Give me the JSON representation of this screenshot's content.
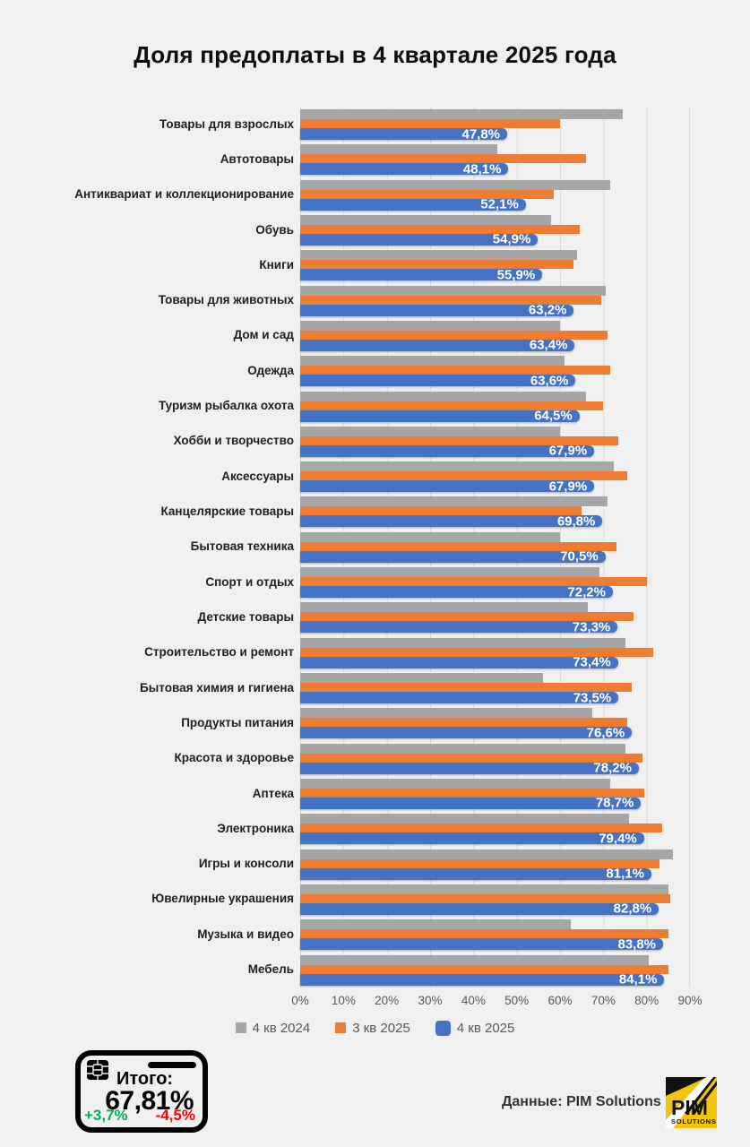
{
  "title": "Доля предоплаты в 4 квартале 2025 года",
  "chart_data": {
    "type": "bar",
    "orientation": "horizontal",
    "xlim": [
      0,
      90
    ],
    "x_ticks": [
      "0%",
      "10%",
      "20%",
      "30%",
      "40%",
      "50%",
      "60%",
      "70%",
      "80%",
      "90%"
    ],
    "grid": true,
    "legend_position": "bottom",
    "series_names": [
      "4 кв 2024",
      "3 кв 2025",
      "4 кв 2025"
    ],
    "value_labels_on": "4 кв 2025",
    "categories": [
      {
        "name": "Товары для взрослых",
        "q4_2024": 74.5,
        "q3_2025": 60.0,
        "q4_2025": 47.8,
        "label": "47,8%"
      },
      {
        "name": "Автотовары",
        "q4_2024": 45.5,
        "q3_2025": 66.0,
        "q4_2025": 48.1,
        "label": "48,1%"
      },
      {
        "name": "Антиквариат и коллекционирование",
        "q4_2024": 71.5,
        "q3_2025": 58.5,
        "q4_2025": 52.1,
        "label": "52,1%"
      },
      {
        "name": "Обувь",
        "q4_2024": 58.0,
        "q3_2025": 64.5,
        "q4_2025": 54.9,
        "label": "54,9%"
      },
      {
        "name": "Книги",
        "q4_2024": 64.0,
        "q3_2025": 63.0,
        "q4_2025": 55.9,
        "label": "55,9%"
      },
      {
        "name": "Товары для животных",
        "q4_2024": 70.5,
        "q3_2025": 69.5,
        "q4_2025": 63.2,
        "label": "63,2%"
      },
      {
        "name": "Дом и сад",
        "q4_2024": 60.0,
        "q3_2025": 71.0,
        "q4_2025": 63.4,
        "label": "63,4%"
      },
      {
        "name": "Одежда",
        "q4_2024": 61.0,
        "q3_2025": 71.5,
        "q4_2025": 63.6,
        "label": "63,6%"
      },
      {
        "name": "Туризм рыбалка охота",
        "q4_2024": 66.0,
        "q3_2025": 70.0,
        "q4_2025": 64.5,
        "label": "64,5%"
      },
      {
        "name": "Хобби и творчество",
        "q4_2024": 60.0,
        "q3_2025": 73.5,
        "q4_2025": 67.9,
        "label": "67,9%"
      },
      {
        "name": "Аксессуары",
        "q4_2024": 72.5,
        "q3_2025": 75.5,
        "q4_2025": 67.9,
        "label": "67,9%"
      },
      {
        "name": "Канцелярские товары",
        "q4_2024": 71.0,
        "q3_2025": 65.0,
        "q4_2025": 69.8,
        "label": "69,8%"
      },
      {
        "name": "Бытовая техника",
        "q4_2024": 60.0,
        "q3_2025": 73.0,
        "q4_2025": 70.5,
        "label": "70,5%"
      },
      {
        "name": "Спорт и отдых",
        "q4_2024": 69.0,
        "q3_2025": 80.0,
        "q4_2025": 72.2,
        "label": "72,2%"
      },
      {
        "name": "Детские товары",
        "q4_2024": 66.5,
        "q3_2025": 77.0,
        "q4_2025": 73.3,
        "label": "73,3%"
      },
      {
        "name": "Строительство и ремонт",
        "q4_2024": 75.0,
        "q3_2025": 81.5,
        "q4_2025": 73.4,
        "label": "73,4%"
      },
      {
        "name": "Бытовая химия и гигиена",
        "q4_2024": 56.0,
        "q3_2025": 76.5,
        "q4_2025": 73.5,
        "label": "73,5%"
      },
      {
        "name": "Продукты питания",
        "q4_2024": 67.5,
        "q3_2025": 75.5,
        "q4_2025": 76.6,
        "label": "76,6%"
      },
      {
        "name": "Красота и здоровье",
        "q4_2024": 75.0,
        "q3_2025": 79.0,
        "q4_2025": 78.2,
        "label": "78,2%"
      },
      {
        "name": "Аптека",
        "q4_2024": 71.5,
        "q3_2025": 79.5,
        "q4_2025": 78.7,
        "label": "78,7%"
      },
      {
        "name": "Электроника",
        "q4_2024": 76.0,
        "q3_2025": 83.5,
        "q4_2025": 79.4,
        "label": "79,4%"
      },
      {
        "name": "Игры и консоли",
        "q4_2024": 86.0,
        "q3_2025": 83.0,
        "q4_2025": 81.1,
        "label": "81,1%"
      },
      {
        "name": "Ювелирные украшения",
        "q4_2024": 85.0,
        "q3_2025": 85.5,
        "q4_2025": 82.8,
        "label": "82,8%"
      },
      {
        "name": "Музыка и видео",
        "q4_2024": 62.5,
        "q3_2025": 85.0,
        "q4_2025": 83.8,
        "label": "83,8%"
      },
      {
        "name": "Мебель",
        "q4_2024": 80.5,
        "q3_2025": 85.0,
        "q4_2025": 84.1,
        "label": "84,1%"
      }
    ]
  },
  "legend": [
    {
      "label": "4 кв 2024",
      "color": "#a6a6a6",
      "shape": "square"
    },
    {
      "label": "3 кв 2025",
      "color": "#ed7d31",
      "shape": "square"
    },
    {
      "label": "4 кв 2025",
      "color": "#4472c4",
      "shape": "rounded"
    }
  ],
  "colors": {
    "bg": "#f0f0f0",
    "grid": "#d9d9d9",
    "gray": "#a6a6a6",
    "orange": "#ed7d31",
    "blue": "#4472c4",
    "green": "#00b050",
    "red": "#ff0000",
    "logo_yellow": "#f2c40d"
  },
  "totals_card": {
    "label": "Итого:",
    "value": "67,81%",
    "delta_up": "+3,7%",
    "delta_down": "-4,5%"
  },
  "source": "Данные: PIM Solutions",
  "logo": {
    "line1": "PIM",
    "line2": "SOLUTIONS"
  }
}
